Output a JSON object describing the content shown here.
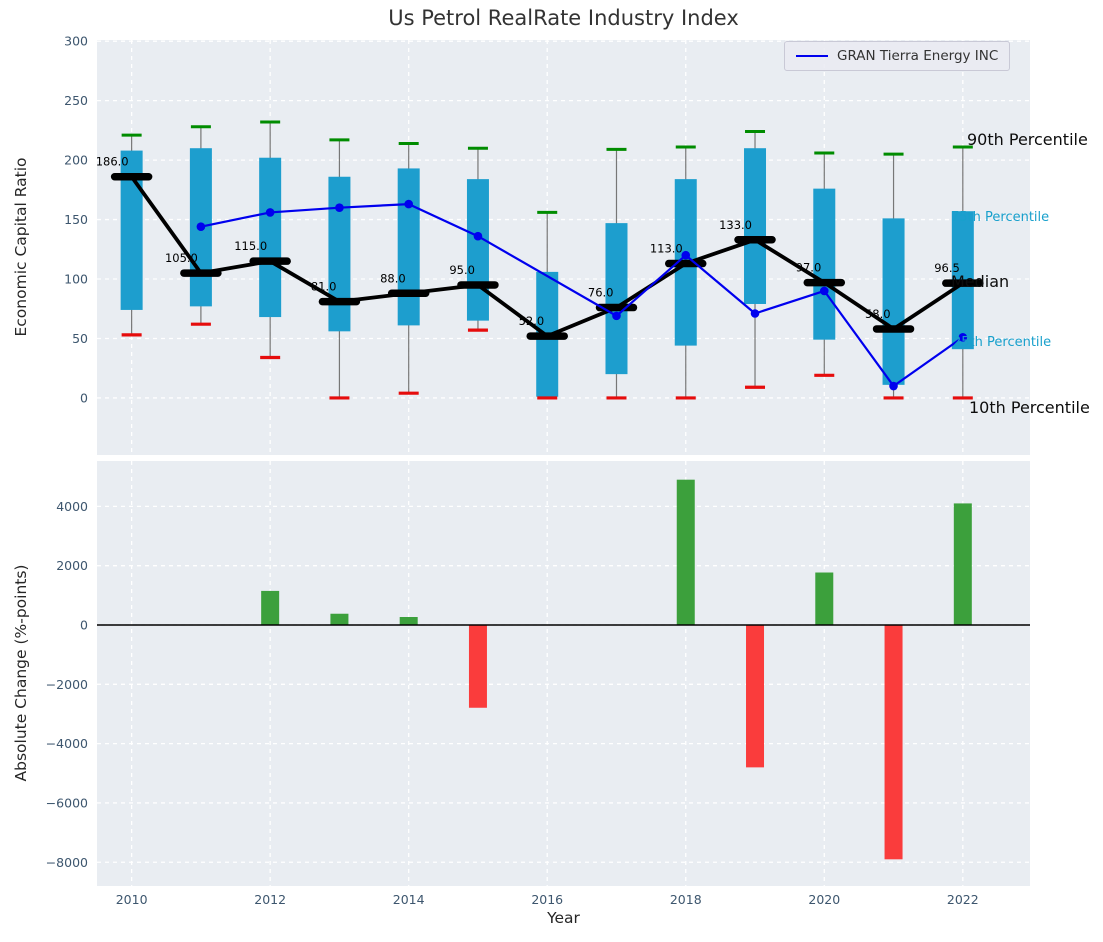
{
  "title": "Us Petrol RealRate Industry Index",
  "chart_data": [
    {
      "type": "boxplot-with-line",
      "title": "Us Petrol RealRate Industry Index",
      "ylabel": "Economic Capital Ratio",
      "x": [
        2010,
        2011,
        2012,
        2013,
        2014,
        2015,
        2016,
        2017,
        2018,
        2019,
        2020,
        2021,
        2022
      ],
      "box": {
        "p90": [
          221,
          228,
          232,
          217,
          214,
          210,
          156,
          209,
          211,
          224,
          206,
          205,
          211
        ],
        "p75": [
          208,
          210,
          202,
          186,
          193,
          184,
          106,
          147,
          184,
          210,
          176,
          151,
          157
        ],
        "median": [
          186.0,
          105.0,
          115.0,
          81.0,
          88.0,
          95.0,
          52.0,
          76.0,
          113.0,
          133.0,
          97.0,
          58.0,
          96.5
        ],
        "p25": [
          74,
          77,
          68,
          56,
          61,
          65,
          1,
          20,
          44,
          79,
          49,
          11,
          41
        ],
        "p10": [
          53,
          62,
          34,
          0,
          4,
          57,
          0,
          0,
          0,
          9,
          19,
          0,
          0
        ]
      },
      "median_labels": [
        "186.0",
        "105.0",
        "115.0",
        "81.0",
        "88.0",
        "95.0",
        "52.0",
        "76.0",
        "113.0",
        "133.0",
        "97.0",
        "58.0",
        "96.5"
      ],
      "series": [
        {
          "name": "GRAN Tierra Energy INC",
          "x": [
            2011,
            2012,
            2013,
            2014,
            2015,
            2017,
            2018,
            2019,
            2020,
            2021,
            2022
          ],
          "y": [
            144,
            156,
            160,
            163,
            136,
            69,
            120,
            71,
            90,
            10,
            51
          ],
          "color": "#0000ee"
        }
      ],
      "annotations": [
        "90th Percentile",
        "75th Percentile",
        "Median",
        "25th Percentile",
        "10th Percentile"
      ],
      "yticks": [
        0,
        50,
        100,
        150,
        200,
        250,
        300
      ],
      "ylim": [
        -48,
        301
      ],
      "xlim": [
        2009.5,
        2022.97
      ],
      "xticks": [
        2010,
        2012,
        2014,
        2016,
        2018,
        2020,
        2022
      ],
      "legend_position": "upper right",
      "grid": true,
      "colors": {
        "box": "#1d9ece",
        "p90_cap": "#008c00",
        "p10_cap": "#e60c0c",
        "median": "#000000",
        "whisker": "#777777",
        "plot_bg": "#e9edf2",
        "grid": "#ffffff",
        "tick": "#3d566e"
      }
    },
    {
      "type": "bar",
      "ylabel": "Absolute Change (%-points)",
      "xlabel": "Year",
      "x": [
        2010,
        2011,
        2012,
        2013,
        2014,
        2015,
        2016,
        2017,
        2018,
        2019,
        2020,
        2021,
        2022
      ],
      "values": [
        0,
        0,
        1150,
        380,
        270,
        -2790,
        0,
        0,
        4900,
        -4800,
        1770,
        -7900,
        4100
      ],
      "yticks": [
        4000,
        2000,
        0,
        -2000,
        -4000,
        -6000,
        -8000
      ],
      "ylim": [
        -8800,
        5530
      ],
      "xticks": [
        2010,
        2012,
        2014,
        2016,
        2018,
        2020,
        2022
      ],
      "grid": true,
      "colors": {
        "positive": "#3ca03c",
        "negative": "#fa3c3c",
        "zero_line": "#000000",
        "plot_bg": "#e9edf2",
        "grid": "#ffffff",
        "tick": "#3d566e"
      }
    }
  ]
}
